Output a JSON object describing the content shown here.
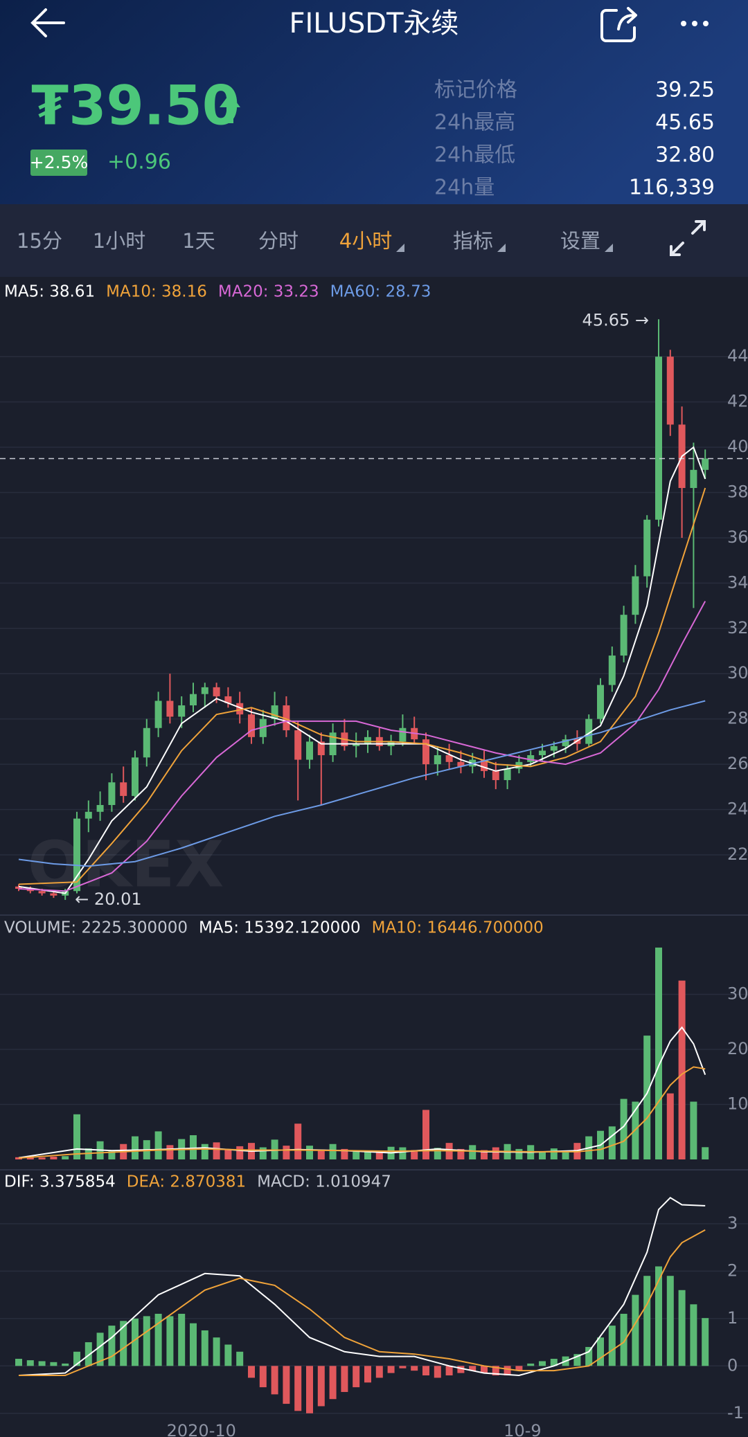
{
  "header": {
    "title": "FILUSDT永续",
    "price": "₮39.50",
    "change_percent": "+2.5%",
    "change": "+0.96",
    "stats": [
      {
        "label": "标记价格",
        "value": "39.25"
      },
      {
        "label": "24h最高",
        "value": "45.65"
      },
      {
        "label": "24h最低",
        "value": "32.80"
      },
      {
        "label": "24h量",
        "value": "116,339"
      }
    ]
  },
  "tabs": [
    "15分",
    "1小时",
    "1天",
    "分时",
    "4小时",
    "指标",
    "设置"
  ],
  "active_tab": 4,
  "chart_data": [
    {
      "type": "candlestick",
      "watermark": "OKEX",
      "up_color": "#5bb974",
      "down_color": "#e0585c",
      "current_price": 39.5,
      "ylim": [
        19.4,
        46.3
      ],
      "yticks": [
        22,
        24,
        26,
        28,
        30,
        32,
        34,
        36,
        38,
        40,
        42,
        44
      ],
      "grid": true,
      "annotations": [
        {
          "text": "45.65 →",
          "x": 55,
          "y": 45.65,
          "align": "right"
        },
        {
          "text": "← 20.01",
          "x": 4,
          "y": 20.01,
          "align": "left"
        }
      ],
      "ohlc": [
        [
          20.6,
          20.7,
          20.4,
          20.5
        ],
        [
          20.5,
          20.6,
          20.3,
          20.4
        ],
        [
          20.4,
          20.5,
          20.2,
          20.3
        ],
        [
          20.3,
          20.4,
          20.1,
          20.2
        ],
        [
          20.2,
          20.5,
          20.01,
          20.4
        ],
        [
          20.4,
          23.9,
          20.3,
          23.6
        ],
        [
          23.6,
          24.4,
          23.0,
          23.9
        ],
        [
          23.9,
          24.8,
          23.5,
          24.2
        ],
        [
          24.2,
          25.6,
          23.9,
          25.2
        ],
        [
          25.2,
          25.9,
          24.3,
          24.6
        ],
        [
          24.6,
          26.6,
          24.4,
          26.3
        ],
        [
          26.3,
          28.0,
          25.9,
          27.6
        ],
        [
          27.6,
          29.2,
          27.2,
          28.8
        ],
        [
          28.8,
          30.0,
          27.8,
          28.1
        ],
        [
          28.1,
          29.0,
          27.6,
          28.6
        ],
        [
          28.6,
          29.6,
          28.3,
          29.1
        ],
        [
          29.1,
          29.6,
          28.5,
          29.4
        ],
        [
          29.4,
          29.6,
          28.7,
          29.0
        ],
        [
          29.0,
          29.4,
          28.5,
          28.7
        ],
        [
          28.7,
          29.2,
          27.8,
          28.2
        ],
        [
          28.2,
          28.5,
          26.9,
          27.2
        ],
        [
          27.2,
          28.4,
          26.9,
          28.0
        ],
        [
          28.0,
          29.2,
          27.7,
          28.6
        ],
        [
          28.6,
          29.0,
          27.2,
          27.5
        ],
        [
          27.5,
          27.9,
          24.4,
          26.2
        ],
        [
          26.2,
          27.3,
          25.8,
          27.0
        ],
        [
          27.0,
          27.4,
          24.2,
          26.4
        ],
        [
          26.4,
          27.8,
          26.1,
          27.4
        ],
        [
          27.4,
          28.0,
          26.6,
          26.8
        ],
        [
          26.8,
          27.4,
          26.3,
          26.9
        ],
        [
          26.9,
          27.5,
          26.5,
          27.2
        ],
        [
          27.2,
          27.6,
          26.6,
          26.8
        ],
        [
          26.8,
          27.3,
          26.4,
          27.0
        ],
        [
          27.0,
          28.2,
          26.8,
          27.6
        ],
        [
          27.6,
          28.1,
          26.9,
          27.1
        ],
        [
          27.1,
          27.4,
          25.3,
          26.0
        ],
        [
          26.0,
          26.8,
          25.5,
          26.4
        ],
        [
          26.4,
          26.9,
          25.8,
          26.1
        ],
        [
          26.1,
          26.6,
          25.6,
          25.9
        ],
        [
          25.9,
          26.5,
          25.6,
          26.2
        ],
        [
          26.2,
          26.6,
          25.4,
          25.7
        ],
        [
          25.7,
          26.1,
          24.9,
          25.3
        ],
        [
          25.3,
          26.0,
          24.9,
          25.8
        ],
        [
          25.8,
          26.4,
          25.6,
          26.1
        ],
        [
          26.1,
          26.6,
          25.9,
          26.4
        ],
        [
          26.4,
          26.9,
          26.1,
          26.6
        ],
        [
          26.6,
          27.0,
          26.3,
          26.8
        ],
        [
          26.8,
          27.3,
          26.5,
          27.1
        ],
        [
          27.1,
          27.5,
          26.6,
          26.9
        ],
        [
          26.9,
          28.2,
          26.8,
          28.0
        ],
        [
          28.0,
          29.8,
          27.8,
          29.5
        ],
        [
          29.5,
          31.2,
          29.2,
          30.8
        ],
        [
          30.8,
          33.0,
          30.5,
          32.6
        ],
        [
          32.6,
          34.8,
          32.2,
          34.3
        ],
        [
          34.3,
          37.0,
          33.8,
          36.8
        ],
        [
          36.8,
          45.65,
          36.5,
          44.0
        ],
        [
          44.0,
          44.3,
          40.5,
          41.0
        ],
        [
          41.0,
          41.8,
          36.0,
          38.2
        ],
        [
          38.2,
          40.2,
          32.9,
          39.0
        ],
        [
          39.0,
          39.9,
          38.6,
          39.5
        ]
      ],
      "series": [
        {
          "name": "MA5: 38.61",
          "color": "#ffffff",
          "x": [
            0,
            4,
            6,
            8,
            11,
            14,
            17,
            20,
            23,
            26,
            29,
            32,
            35,
            38,
            41,
            44,
            47,
            50,
            52,
            54,
            56,
            57,
            58,
            59
          ],
          "values": [
            20.6,
            20.3,
            21.8,
            23.5,
            25.0,
            27.8,
            28.9,
            28.3,
            27.9,
            26.9,
            26.9,
            26.9,
            26.9,
            26.2,
            25.7,
            26.0,
            26.7,
            27.7,
            29.9,
            33.0,
            38.5,
            39.6,
            40.0,
            38.6
          ]
        },
        {
          "name": "MA10: 38.16",
          "color": "#f0a33a",
          "x": [
            0,
            5,
            8,
            11,
            14,
            17,
            20,
            23,
            26,
            29,
            32,
            35,
            38,
            41,
            44,
            47,
            50,
            53,
            55,
            57,
            59
          ],
          "values": [
            20.7,
            20.8,
            22.5,
            24.3,
            26.6,
            28.2,
            28.5,
            28.0,
            27.3,
            27.0,
            27.0,
            26.9,
            26.5,
            26.0,
            25.9,
            26.3,
            27.0,
            29.0,
            31.8,
            35.0,
            38.2
          ]
        },
        {
          "name": "MA20: 33.23",
          "color": "#d868d6",
          "x": [
            0,
            4,
            8,
            11,
            14,
            17,
            20,
            23,
            26,
            29,
            32,
            35,
            38,
            41,
            44,
            47,
            50,
            53,
            55,
            57,
            59
          ],
          "values": [
            20.5,
            20.4,
            21.2,
            22.6,
            24.6,
            26.3,
            27.5,
            27.9,
            27.9,
            27.9,
            27.5,
            27.3,
            26.9,
            26.5,
            26.2,
            26.0,
            26.5,
            27.8,
            29.3,
            31.3,
            33.2
          ]
        },
        {
          "name": "MA60: 28.73",
          "color": "#6d9be6",
          "x": [
            0,
            3,
            6,
            10,
            14,
            18,
            22,
            26,
            30,
            34,
            38,
            42,
            46,
            50,
            53,
            56,
            59
          ],
          "values": [
            21.8,
            21.6,
            21.5,
            21.7,
            22.3,
            23.0,
            23.7,
            24.2,
            24.8,
            25.4,
            25.9,
            26.4,
            26.9,
            27.4,
            27.9,
            28.4,
            28.8
          ]
        }
      ]
    },
    {
      "type": "bar",
      "values_name": "VOLUME: 2225.300000",
      "ylim": [
        0,
        40000
      ],
      "yticks": [
        {
          "value": 10000,
          "label": "10k"
        },
        {
          "value": 20000,
          "label": "20k"
        },
        {
          "value": 30000,
          "label": "30k"
        }
      ],
      "values": [
        400,
        300,
        350,
        500,
        600,
        8200,
        2000,
        3300,
        1500,
        2800,
        4200,
        3500,
        5100,
        2600,
        3700,
        4400,
        2800,
        3100,
        1900,
        2400,
        3000,
        2200,
        3600,
        2500,
        6500,
        2500,
        1800,
        2800,
        1900,
        1500,
        1600,
        1300,
        2300,
        2200,
        1700,
        9000,
        2100,
        3000,
        1900,
        2600,
        1700,
        2200,
        2800,
        1900,
        2600,
        1500,
        2000,
        1300,
        3000,
        4200,
        5200,
        6000,
        11000,
        10500,
        22500,
        38500,
        12000,
        32500,
        10500,
        2225.3
      ],
      "series": [
        {
          "name": "MA5: 15392.120000",
          "color": "#ffffff",
          "x": [
            0,
            5,
            8,
            12,
            16,
            20,
            24,
            28,
            32,
            36,
            40,
            44,
            48,
            50,
            52,
            54,
            55,
            56,
            57,
            58,
            59
          ],
          "values": [
            300,
            1900,
            1600,
            1800,
            2100,
            1500,
            1800,
            1600,
            1200,
            1900,
            1400,
            1300,
            1600,
            2600,
            6000,
            12000,
            17000,
            21500,
            24000,
            21000,
            15392.12
          ]
        },
        {
          "name": "MA10: 16446.700000",
          "color": "#f0a33a",
          "x": [
            0,
            5,
            8,
            12,
            16,
            20,
            24,
            28,
            32,
            36,
            40,
            44,
            48,
            50,
            52,
            54,
            56,
            57,
            58,
            59
          ],
          "values": [
            250,
            1000,
            1300,
            1700,
            1900,
            1700,
            1700,
            1600,
            1500,
            1600,
            1500,
            1400,
            1400,
            1800,
            3300,
            7500,
            13500,
            15500,
            16800,
            16446.7
          ]
        }
      ]
    },
    {
      "type": "histogram",
      "values_name": "MACD: 1.010947",
      "ylim": [
        -1.5,
        3.7
      ],
      "yticks": [
        -1,
        0,
        1,
        2,
        3
      ],
      "xticks": [
        {
          "value": 15.7,
          "label": "2020-10"
        },
        {
          "value": 43.3,
          "label": "10-9"
        }
      ],
      "values": [
        0.15,
        0.12,
        0.1,
        0.08,
        0.05,
        0.3,
        0.5,
        0.7,
        0.85,
        0.95,
        1.0,
        1.05,
        1.1,
        1.05,
        1.1,
        0.9,
        0.75,
        0.6,
        0.45,
        0.3,
        -0.25,
        -0.45,
        -0.6,
        -0.8,
        -0.95,
        -1.0,
        -0.85,
        -0.7,
        -0.55,
        -0.45,
        -0.35,
        -0.25,
        -0.15,
        -0.05,
        -0.1,
        -0.2,
        -0.25,
        -0.2,
        -0.15,
        -0.1,
        -0.15,
        -0.2,
        -0.2,
        -0.1,
        0.05,
        0.1,
        0.15,
        0.2,
        0.25,
        0.4,
        0.6,
        0.85,
        1.1,
        1.5,
        1.9,
        2.1,
        1.9,
        1.6,
        1.3,
        1.01
      ],
      "series": [
        {
          "name": "DIF: 3.375854",
          "color": "#ffffff",
          "x": [
            0,
            4,
            8,
            12,
            16,
            19,
            22,
            25,
            28,
            31,
            34,
            37,
            40,
            43,
            46,
            49,
            52,
            54,
            55,
            56,
            57,
            59
          ],
          "values": [
            -0.2,
            -0.15,
            0.6,
            1.5,
            1.95,
            1.9,
            1.3,
            0.6,
            0.3,
            0.2,
            0.2,
            0.0,
            -0.15,
            -0.2,
            0.0,
            0.3,
            1.3,
            2.4,
            3.3,
            3.55,
            3.4,
            3.38
          ]
        },
        {
          "name": "DEA: 2.870381",
          "color": "#f0a33a",
          "x": [
            0,
            4,
            8,
            12,
            16,
            19,
            22,
            25,
            28,
            31,
            34,
            37,
            40,
            43,
            46,
            49,
            52,
            54,
            56,
            57,
            59
          ],
          "values": [
            -0.2,
            -0.2,
            0.2,
            0.9,
            1.6,
            1.85,
            1.7,
            1.2,
            0.6,
            0.3,
            0.25,
            0.15,
            0.0,
            -0.1,
            -0.1,
            0.0,
            0.5,
            1.3,
            2.3,
            2.6,
            2.87
          ]
        }
      ]
    }
  ]
}
